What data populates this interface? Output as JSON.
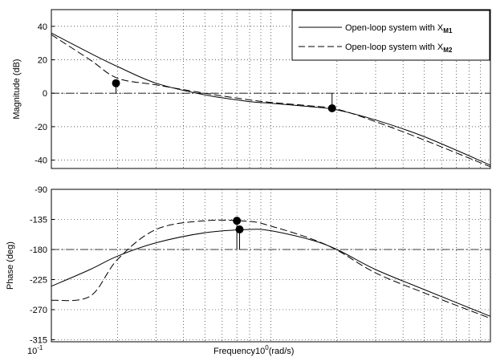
{
  "chart_data": [
    {
      "type": "line",
      "ylabel": "Magnitude (dB)",
      "xscale": "log",
      "xlim": [
        0.1,
        10
      ],
      "ylim": [
        -45,
        50
      ],
      "yticks": [
        40,
        20,
        0,
        -20,
        -40
      ],
      "ytick_labels": [
        "40",
        "20",
        "0",
        "-20",
        "-40"
      ],
      "grid": true,
      "reference_line": 0,
      "legend_position": "top-right",
      "series": [
        {
          "name_prefix": "Open-loop system with X",
          "name_subscript": "M1",
          "style": "solid",
          "x": [
            0.1,
            0.15,
            0.2,
            0.3,
            0.5,
            0.8,
            1.0,
            1.5,
            2.0,
            3.0,
            5.0,
            10.0
          ],
          "y": [
            36,
            24,
            16,
            6,
            -1,
            -5,
            -6,
            -8,
            -10,
            -16,
            -26,
            -43
          ]
        },
        {
          "name_prefix": "Open-loop system with X",
          "name_subscript": "M2",
          "style": "dashed",
          "x": [
            0.1,
            0.15,
            0.2,
            0.3,
            0.5,
            0.8,
            1.0,
            1.5,
            2.0,
            3.0,
            5.0,
            10.0
          ],
          "y": [
            35,
            20,
            9,
            5,
            0,
            -4,
            -5.5,
            -7.5,
            -9.5,
            -17,
            -28,
            -44
          ]
        }
      ],
      "markers": [
        {
          "x": 0.197,
          "y": 6
        },
        {
          "x": 1.9,
          "y": -9
        }
      ]
    },
    {
      "type": "line",
      "xlabel": "Frequency (rad/s)",
      "ylabel": "Phase (deg)",
      "xscale": "log",
      "xlim": [
        0.1,
        10
      ],
      "ylim": [
        -318,
        -90
      ],
      "yticks": [
        -90,
        -135,
        -180,
        -225,
        -270,
        -315
      ],
      "ytick_labels": [
        "-90",
        "-135",
        "-180",
        "-225",
        "-270",
        "-315"
      ],
      "grid": true,
      "reference_line": -180,
      "series": [
        {
          "name_prefix": "Open-loop system with X",
          "name_subscript": "M1",
          "style": "solid",
          "x": [
            0.1,
            0.15,
            0.2,
            0.3,
            0.5,
            0.8,
            1.0,
            1.5,
            2.0,
            3.0,
            5.0,
            10.0
          ],
          "y": [
            -235,
            -210,
            -190,
            -170,
            -155,
            -150,
            -152,
            -165,
            -180,
            -210,
            -240,
            -280
          ]
        },
        {
          "name_prefix": "Open-loop system with X",
          "name_subscript": "M2",
          "style": "dashed",
          "x": [
            0.1,
            0.15,
            0.2,
            0.3,
            0.5,
            0.8,
            1.0,
            1.5,
            2.0,
            3.0,
            5.0,
            10.0
          ],
          "y": [
            -256,
            -250,
            -195,
            -150,
            -137,
            -138,
            -145,
            -163,
            -181,
            -215,
            -245,
            -283
          ]
        }
      ],
      "markers": [
        {
          "x": 0.7,
          "y": -137
        },
        {
          "x": 0.72,
          "y": -150
        }
      ],
      "vlines": [
        {
          "x": 0.7,
          "y_from": -180,
          "y_to": -137
        },
        {
          "x": 0.72,
          "y_from": -180,
          "y_to": -150
        }
      ]
    }
  ],
  "x_axis": {
    "tick_base": "10",
    "tick_exp_min": "-1",
    "tick_exp_mid": "0",
    "label_before": "Frequency",
    "label_after": "(rad/s)"
  },
  "colors": {
    "line": "#000000",
    "grid": "#000000",
    "background": "#ffffff"
  }
}
